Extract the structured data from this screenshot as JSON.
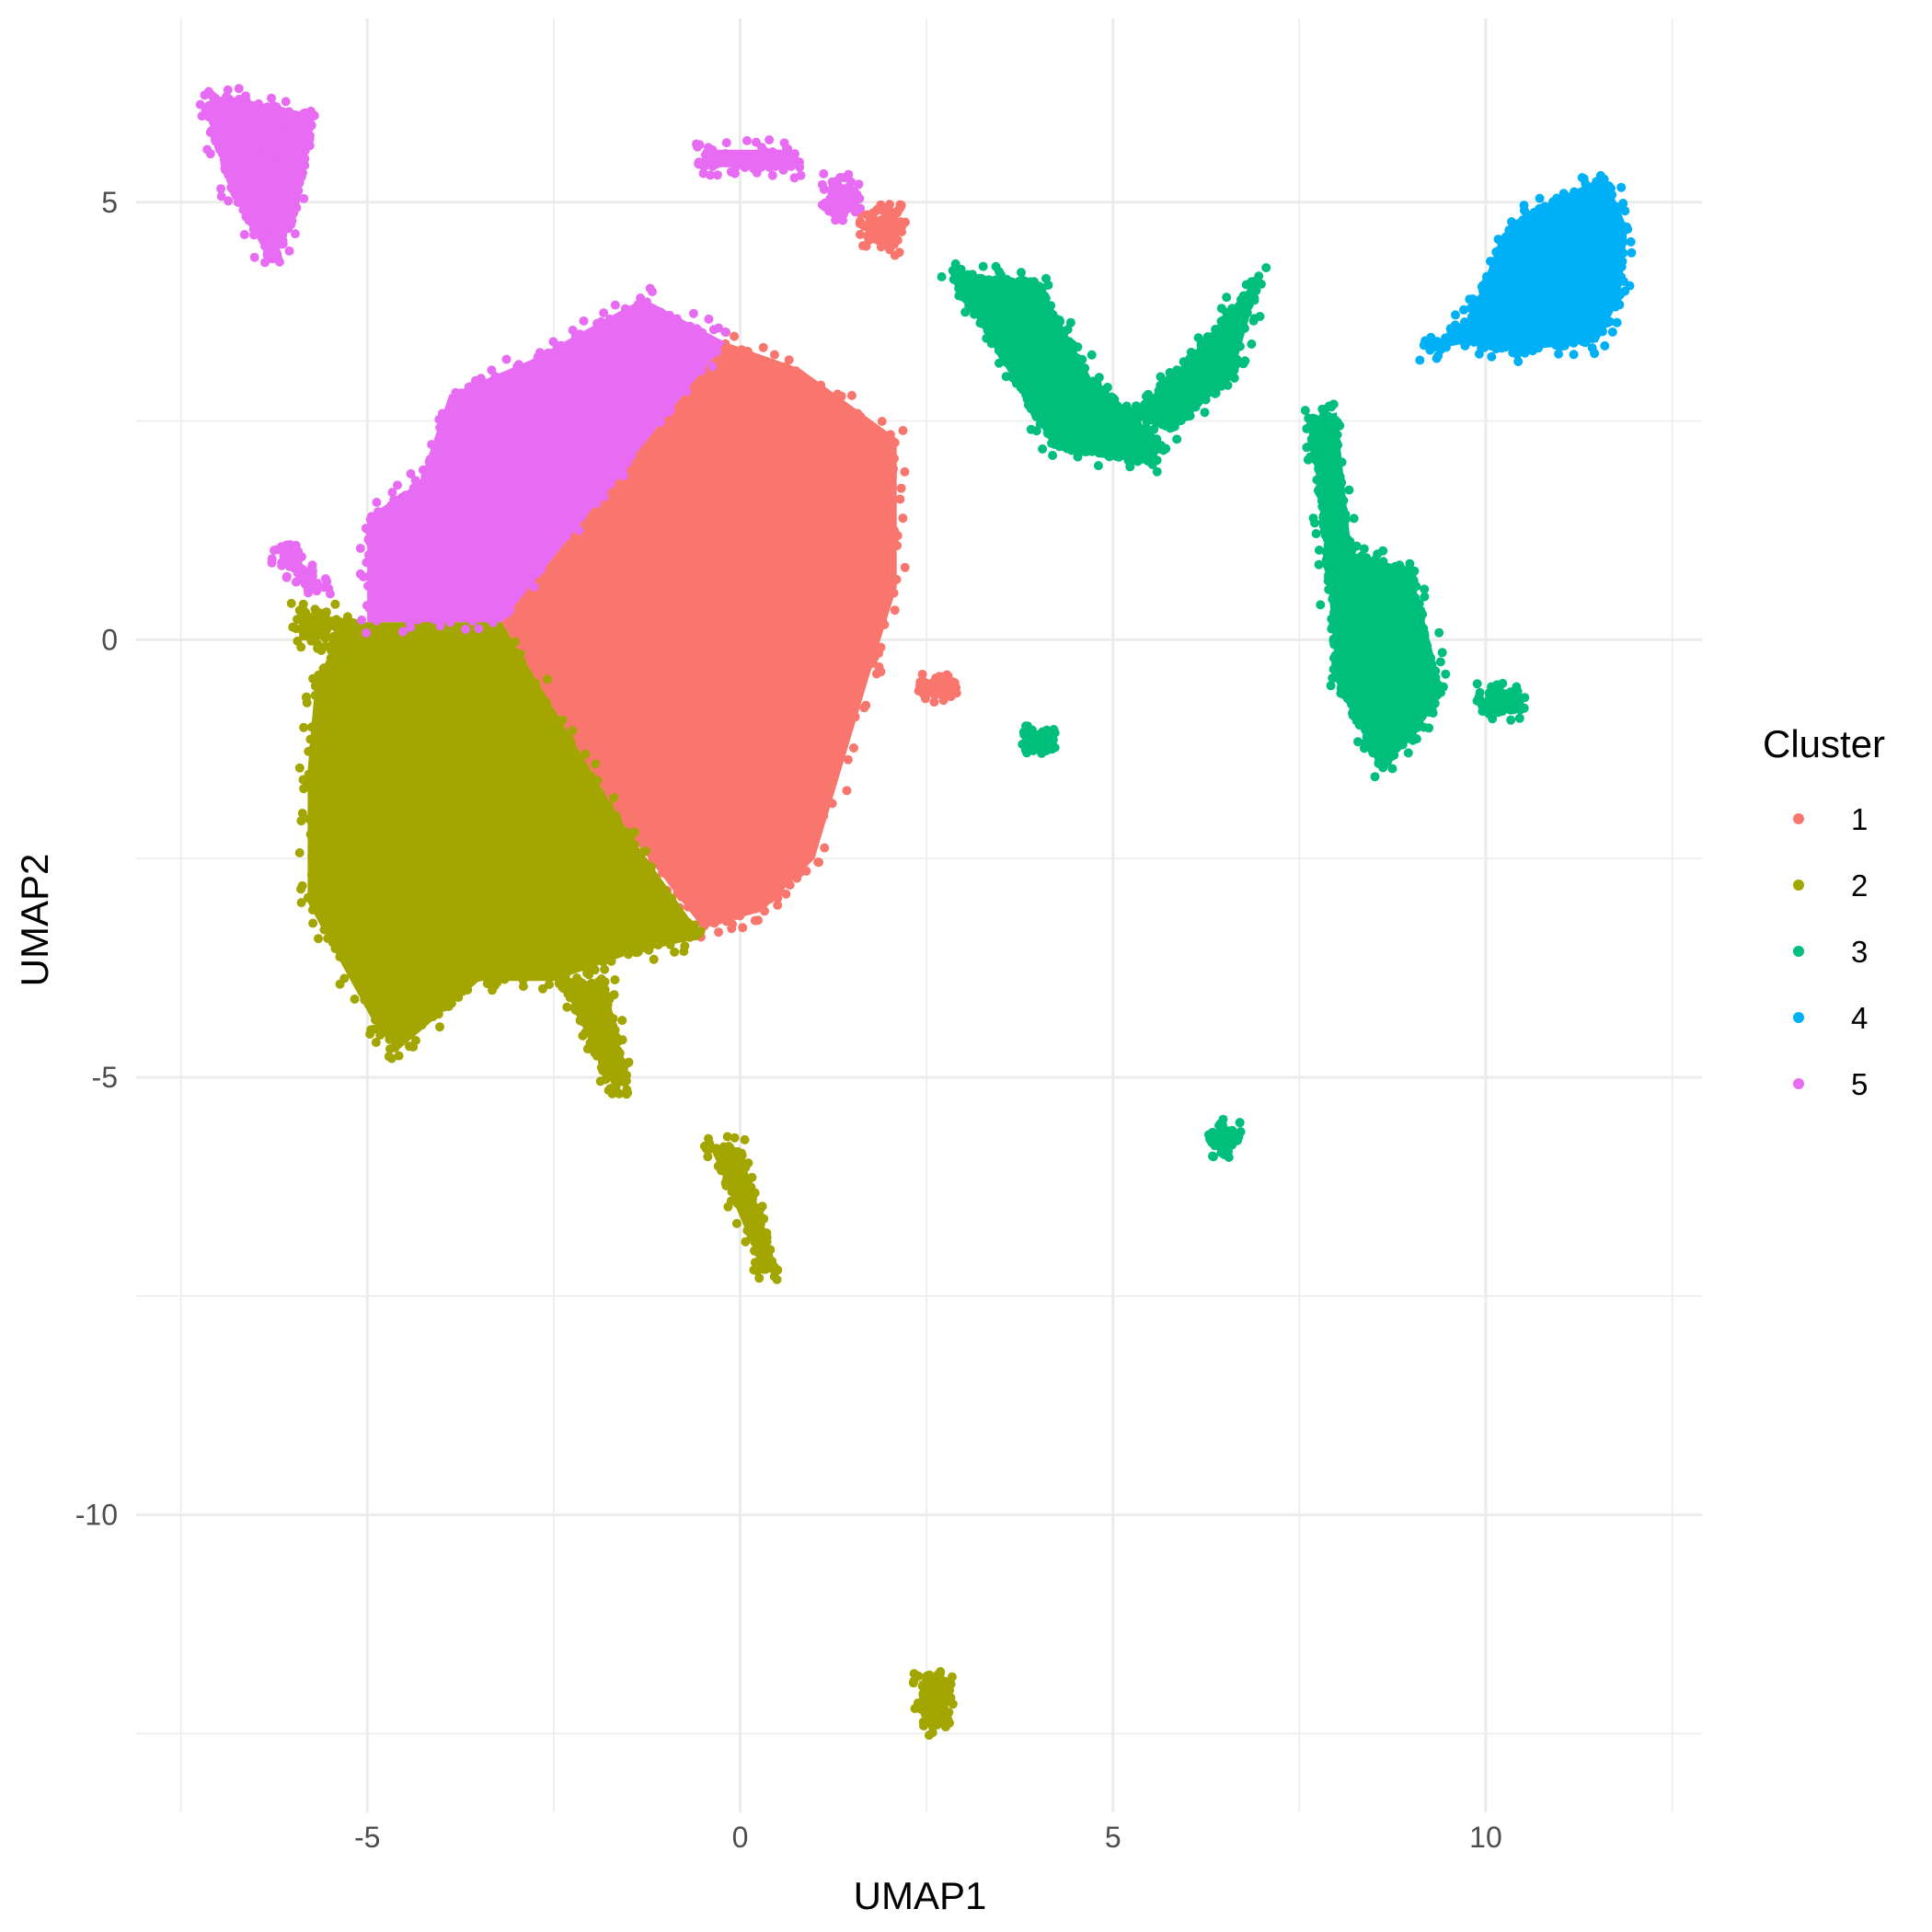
{
  "chart_data": {
    "type": "scatter",
    "title": "",
    "xlabel": "UMAP1",
    "ylabel": "UMAP2",
    "xlim": [
      -8.1,
      12.9
    ],
    "ylim": [
      -13.4,
      7.1
    ],
    "x_ticks": [
      -5,
      0,
      5,
      10
    ],
    "x_tick_labels": [
      "-5",
      "0",
      "5",
      "10"
    ],
    "y_ticks": [
      5,
      0,
      -5,
      -10
    ],
    "y_tick_labels": [
      "5",
      "0",
      "-5",
      "-10"
    ],
    "grid": true,
    "legend": {
      "title": "Cluster",
      "placement": "right"
    },
    "series": [
      {
        "name": "1",
        "color": "#F8766D",
        "regions": [
          {
            "points": [
              [
                -3.2,
                0.2
              ],
              [
                -0.2,
                3.4
              ],
              [
                0.8,
                3.1
              ],
              [
                2.1,
                2.3
              ],
              [
                2.1,
                0.6
              ],
              [
                1.7,
                -0.5
              ],
              [
                1.0,
                -2.5
              ],
              [
                0.3,
                -3.1
              ],
              [
                -0.5,
                -3.3
              ],
              [
                -1.5,
                -2.2
              ]
            ],
            "density": 6000
          },
          {
            "points": [
              [
                1.7,
                4.8
              ],
              [
                2.1,
                4.9
              ],
              [
                2.1,
                4.5
              ],
              [
                1.7,
                4.6
              ]
            ],
            "density": 40
          },
          {
            "points": [
              [
                2.5,
                -0.5
              ],
              [
                2.8,
                -0.5
              ],
              [
                2.8,
                -0.6
              ],
              [
                2.5,
                -0.6
              ]
            ],
            "density": 4
          }
        ]
      },
      {
        "name": "2",
        "color": "#A3A500",
        "regions": [
          {
            "points": [
              [
                -5.7,
                -0.5
              ],
              [
                -5.3,
                0.2
              ],
              [
                -3.2,
                0.2
              ],
              [
                -1.5,
                -2.2
              ],
              [
                -0.5,
                -3.4
              ],
              [
                -1.5,
                -3.6
              ],
              [
                -2.5,
                -3.9
              ],
              [
                -3.5,
                -3.9
              ],
              [
                -4.6,
                -4.7
              ],
              [
                -4.9,
                -4.4
              ],
              [
                -5.8,
                -3.0
              ],
              [
                -5.8,
                -1.5
              ]
            ],
            "density": 7000
          },
          {
            "points": [
              [
                -2.4,
                -3.9
              ],
              [
                -1.8,
                -3.9
              ],
              [
                -1.5,
                -5.1
              ],
              [
                -1.8,
                -5.0
              ]
            ],
            "density": 200
          },
          {
            "points": [
              [
                -0.4,
                -5.8
              ],
              [
                0.0,
                -5.8
              ],
              [
                0.5,
                -7.2
              ],
              [
                0.3,
                -7.2
              ]
            ],
            "density": 150
          },
          {
            "points": [
              [
                2.4,
                -11.9
              ],
              [
                2.8,
                -11.9
              ],
              [
                2.7,
                -12.4
              ],
              [
                2.5,
                -12.4
              ]
            ],
            "density": 50
          },
          {
            "points": [
              [
                -5.9,
                0.3
              ],
              [
                -5.5,
                0.3
              ],
              [
                -5.5,
                0.0
              ],
              [
                -5.9,
                0.0
              ]
            ],
            "density": 10
          }
        ]
      },
      {
        "name": "3",
        "color": "#00BF7D",
        "regions": [
          {
            "points": [
              [
                2.8,
                4.2
              ],
              [
                4.0,
                4.1
              ],
              [
                4.7,
                3.0
              ],
              [
                5.6,
                2.3
              ],
              [
                5.5,
                2.0
              ],
              [
                4.2,
                2.2
              ],
              [
                3.5,
                3.2
              ]
            ],
            "density": 900
          },
          {
            "points": [
              [
                6.0,
                3.2
              ],
              [
                7.0,
                4.2
              ],
              [
                6.6,
                3.0
              ],
              [
                5.8,
                2.4
              ],
              [
                5.3,
                2.6
              ]
            ],
            "density": 350
          },
          {
            "points": [
              [
                7.6,
                2.5
              ],
              [
                8.0,
                2.6
              ],
              [
                8.2,
                1.0
              ],
              [
                9.0,
                0.8
              ],
              [
                9.4,
                -0.5
              ],
              [
                9.2,
                -0.9
              ],
              [
                8.6,
                -1.5
              ],
              [
                8.0,
                -0.5
              ],
              [
                7.8,
                1.5
              ]
            ],
            "density": 1300
          },
          {
            "points": [
              [
                10.0,
                -0.6
              ],
              [
                10.4,
                -0.6
              ],
              [
                10.4,
                -0.8
              ],
              [
                10.0,
                -0.8
              ]
            ],
            "density": 25
          },
          {
            "points": [
              [
                6.4,
                -5.6
              ],
              [
                6.6,
                -5.6
              ],
              [
                6.6,
                -5.8
              ],
              [
                6.4,
                -5.8
              ]
            ],
            "density": 15
          },
          {
            "points": [
              [
                3.9,
                -1.1
              ],
              [
                4.1,
                -1.1
              ],
              [
                4.1,
                -1.2
              ],
              [
                3.9,
                -1.2
              ]
            ],
            "density": 3
          }
        ]
      },
      {
        "name": "4",
        "color": "#00B0F6",
        "regions": [
          {
            "points": [
              [
                9.2,
                3.3
              ],
              [
                9.8,
                3.7
              ],
              [
                10.2,
                4.6
              ],
              [
                10.6,
                4.9
              ],
              [
                11.6,
                5.3
              ],
              [
                11.9,
                4.7
              ],
              [
                11.8,
                3.9
              ],
              [
                11.5,
                3.4
              ],
              [
                10.4,
                3.3
              ],
              [
                9.8,
                3.4
              ]
            ],
            "density": 2200
          }
        ]
      },
      {
        "name": "5",
        "color": "#E76BF3",
        "regions": [
          {
            "points": [
              [
                -7.2,
                6.1
              ],
              [
                -6.8,
                6.2
              ],
              [
                -5.7,
                6.0
              ],
              [
                -6.0,
                4.8
              ],
              [
                -6.3,
                4.3
              ],
              [
                -6.8,
                5.1
              ]
            ],
            "density": 1300
          },
          {
            "points": [
              [
                -5.0,
                0.2
              ],
              [
                -5.0,
                1.4
              ],
              [
                -4.3,
                1.8
              ],
              [
                -3.9,
                2.8
              ],
              [
                -2.8,
                3.2
              ],
              [
                -1.3,
                3.9
              ],
              [
                -0.2,
                3.4
              ],
              [
                -3.2,
                0.2
              ]
            ],
            "density": 3500
          },
          {
            "points": [
              [
                -0.5,
                5.6
              ],
              [
                0.7,
                5.6
              ],
              [
                0.7,
                5.4
              ],
              [
                -0.5,
                5.4
              ]
            ],
            "density": 20
          },
          {
            "points": [
              [
                1.2,
                5.2
              ],
              [
                1.5,
                5.2
              ],
              [
                1.5,
                4.9
              ],
              [
                1.2,
                4.9
              ]
            ],
            "density": 20
          },
          {
            "points": [
              [
                -6.2,
                1.0
              ],
              [
                -5.8,
                0.6
              ],
              [
                -5.6,
                0.6
              ],
              [
                -6.0,
                1.0
              ]
            ],
            "density": 40
          }
        ]
      }
    ]
  }
}
